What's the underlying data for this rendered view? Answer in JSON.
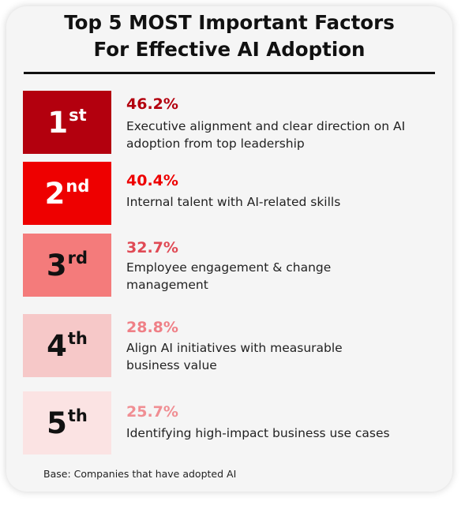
{
  "title": {
    "line1": "Top 5 MOST Important Factors",
    "line2": "For Effective AI Adoption"
  },
  "factors": [
    {
      "rank_number": "1",
      "rank_suffix": "st",
      "percent": "46.2%",
      "description": "Executive alignment and clear direction on AI adoption from top leadership",
      "box_color": "#b3000e",
      "rank_text_color": "#ffffff",
      "percent_color": "#b3000e"
    },
    {
      "rank_number": "2",
      "rank_suffix": "nd",
      "percent": "40.4%",
      "description": "Internal talent with AI-related skills",
      "box_color": "#ee0000",
      "rank_text_color": "#ffffff",
      "percent_color": "#ee0000"
    },
    {
      "rank_number": "3",
      "rank_suffix": "rd",
      "percent": "32.7%",
      "description": "Employee engagement & change management",
      "box_color": "#f47b7b",
      "rank_text_color": "#111111",
      "percent_color": "#e04a55"
    },
    {
      "rank_number": "4",
      "rank_suffix": "th",
      "percent": "28.8%",
      "description": "Align AI initiatives with measurable business value",
      "box_color": "#f6c8c8",
      "rank_text_color": "#111111",
      "percent_color": "#ef7f86"
    },
    {
      "rank_number": "5",
      "rank_suffix": "th",
      "percent": "25.7%",
      "description": "Identifying high-impact business use cases",
      "box_color": "#fbe3e3",
      "rank_text_color": "#111111",
      "percent_color": "#f08e93"
    }
  ],
  "footnote": "Base: Companies that have adopted AI"
}
